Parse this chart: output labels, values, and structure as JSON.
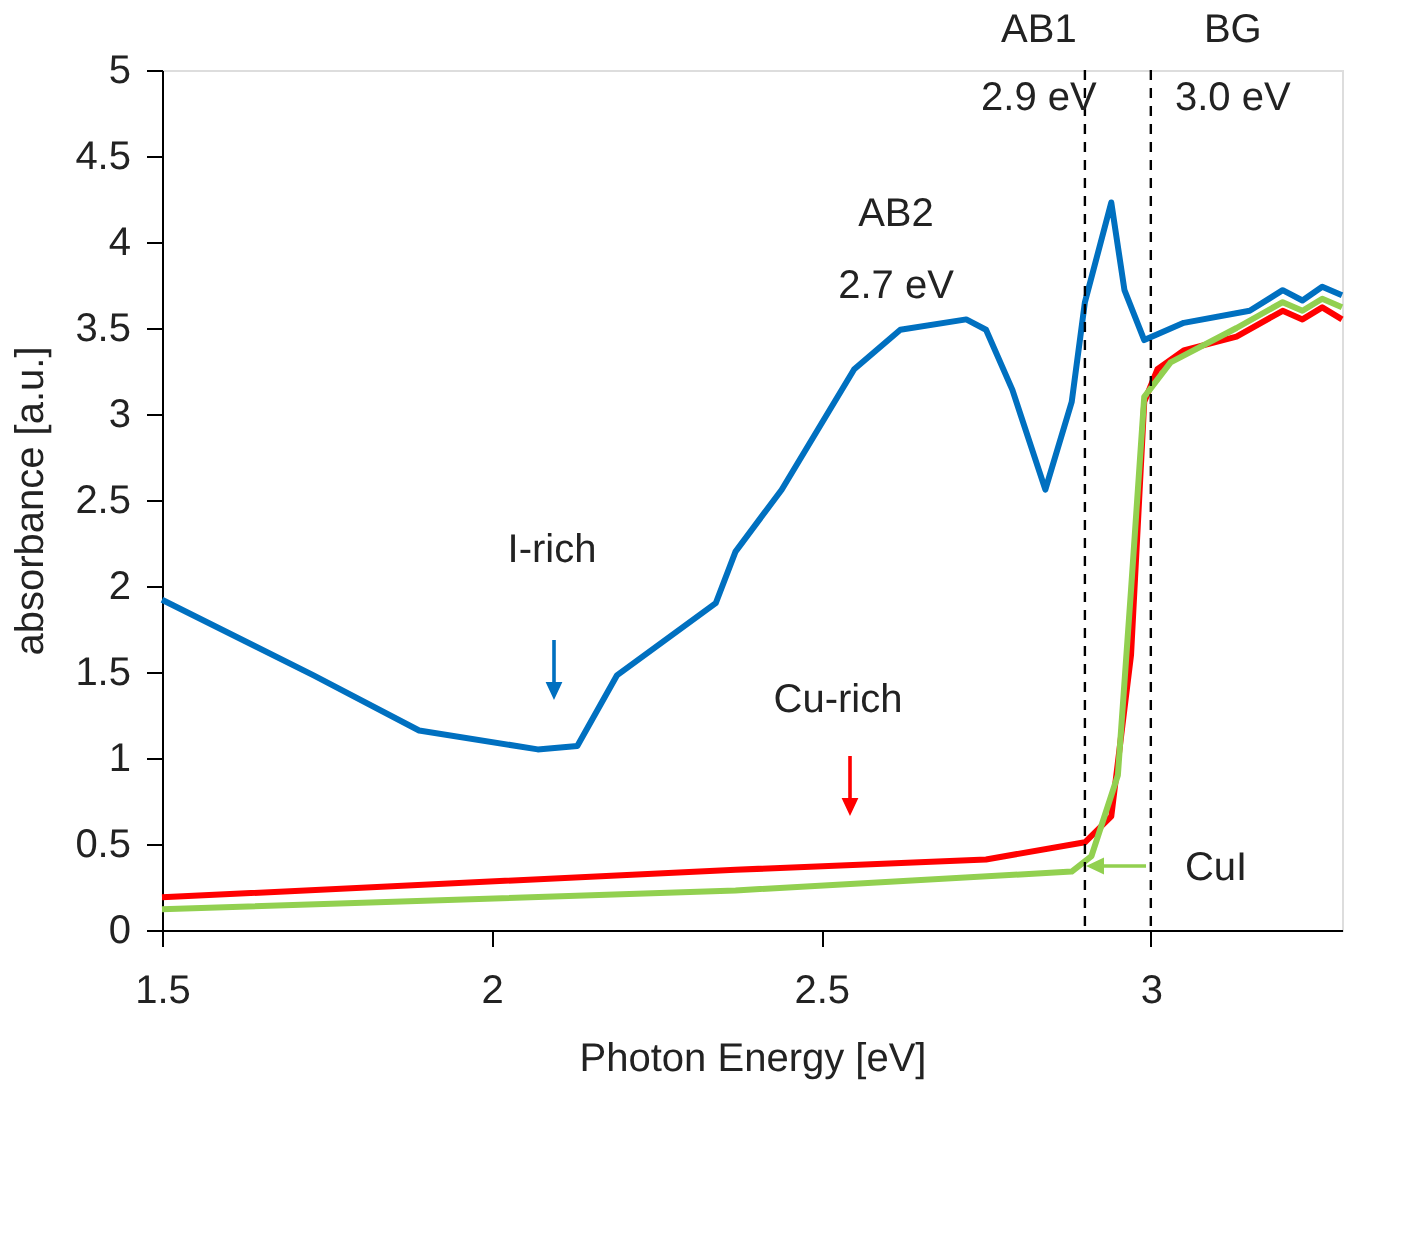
{
  "chart_data": {
    "type": "line",
    "xlabel": "Photon Energy [eV]",
    "ylabel": "absorbance [a.u.]",
    "xlim": [
      1.5,
      3.29
    ],
    "ylim": [
      0,
      5
    ],
    "xticks": [
      1.5,
      2,
      2.5,
      3
    ],
    "yticks": [
      0,
      0.5,
      1,
      1.5,
      2,
      2.5,
      3,
      3.5,
      4,
      4.5,
      5
    ],
    "grid": false,
    "marker": "none",
    "line_style": "solid",
    "series": [
      {
        "color": "#0070c0",
        "x": [
          1.5,
          1.73,
          1.89,
          2.07,
          2.13,
          2.19,
          2.34,
          2.37,
          2.44,
          2.55,
          2.62,
          2.72,
          2.75,
          2.79,
          2.84,
          2.88,
          2.9,
          2.94,
          2.96,
          2.99,
          3.05,
          3.15,
          3.2,
          3.23,
          3.26,
          3.29
        ],
        "values": [
          1.92,
          1.48,
          1.16,
          1.05,
          1.07,
          1.48,
          1.9,
          2.2,
          2.56,
          3.26,
          3.49,
          3.55,
          3.49,
          3.14,
          2.56,
          3.07,
          3.65,
          4.23,
          3.72,
          3.43,
          3.53,
          3.6,
          3.72,
          3.66,
          3.74,
          3.69
        ]
      },
      {
        "color": "#ff0000",
        "x": [
          1.5,
          2.37,
          2.75,
          2.9,
          2.94,
          2.97,
          2.99,
          3.01,
          3.05,
          3.13,
          3.2,
          3.23,
          3.26,
          3.29
        ],
        "values": [
          0.19,
          0.35,
          0.41,
          0.51,
          0.66,
          1.6,
          3.07,
          3.26,
          3.37,
          3.45,
          3.6,
          3.55,
          3.62,
          3.55
        ]
      },
      {
        "color": "#92d050",
        "x": [
          1.5,
          2.37,
          2.88,
          2.91,
          2.95,
          2.97,
          2.99,
          3.03,
          3.13,
          3.2,
          3.23,
          3.26,
          3.29
        ],
        "values": [
          0.12,
          0.23,
          0.34,
          0.43,
          0.9,
          1.98,
          3.1,
          3.3,
          3.5,
          3.65,
          3.6,
          3.67,
          3.62
        ]
      }
    ],
    "ref_lines": [
      {
        "axis": "x",
        "value": 2.9,
        "label": "AB1\n2.9 eV",
        "color": "#000000",
        "line_style": "dashed"
      },
      {
        "axis": "x",
        "value": 3.0,
        "label": "BG\n3.0 eV",
        "color": "#000000",
        "line_style": "dashed"
      }
    ],
    "annotations": [
      "I-rich",
      "Cu-rich",
      "CuI",
      "AB2\n2.7 eV"
    ]
  }
}
